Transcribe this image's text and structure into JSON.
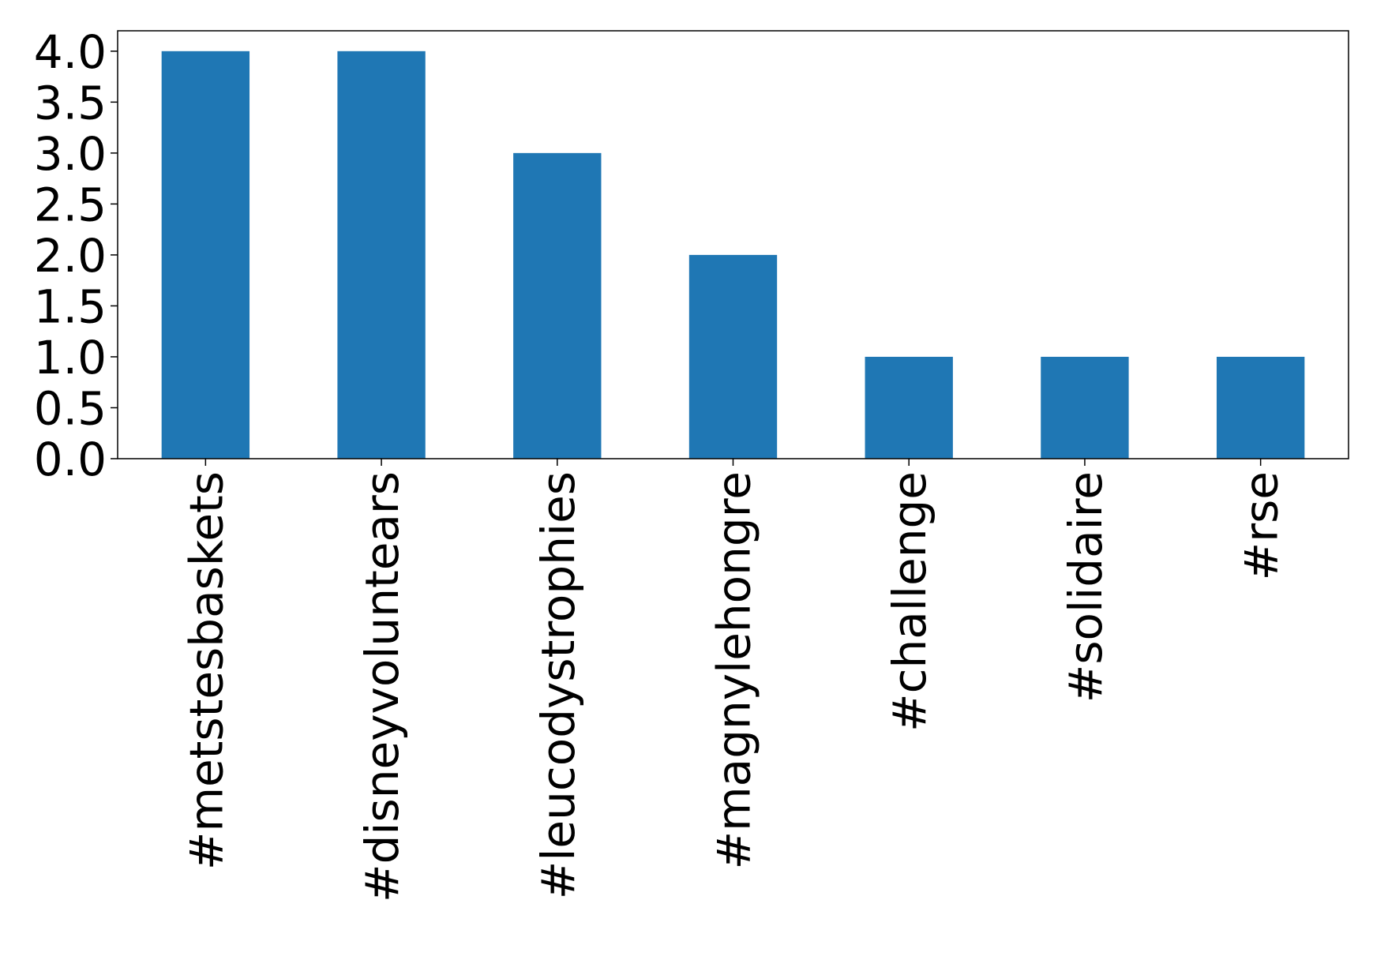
{
  "chart_data": {
    "type": "bar",
    "categories": [
      "#metstesbaskets",
      "#disneyvoluntears",
      "#leucodystrophies",
      "#magnylehongre",
      "#challenge",
      "#solidaire",
      "#rse"
    ],
    "values": [
      4,
      4,
      3,
      2,
      1,
      1,
      1
    ],
    "color": "#1f77b4",
    "ylim": [
      0,
      4.2
    ],
    "yticks": [
      {
        "value": 0,
        "label": "0.0"
      },
      0.5,
      {
        "value": 1,
        "label": "1.0"
      },
      1.5,
      {
        "value": 2,
        "label": "2.0"
      },
      2.5,
      {
        "value": 3,
        "label": "3.0"
      },
      3.5,
      {
        "value": 4,
        "label": "4.0"
      }
    ],
    "grid": false
  }
}
